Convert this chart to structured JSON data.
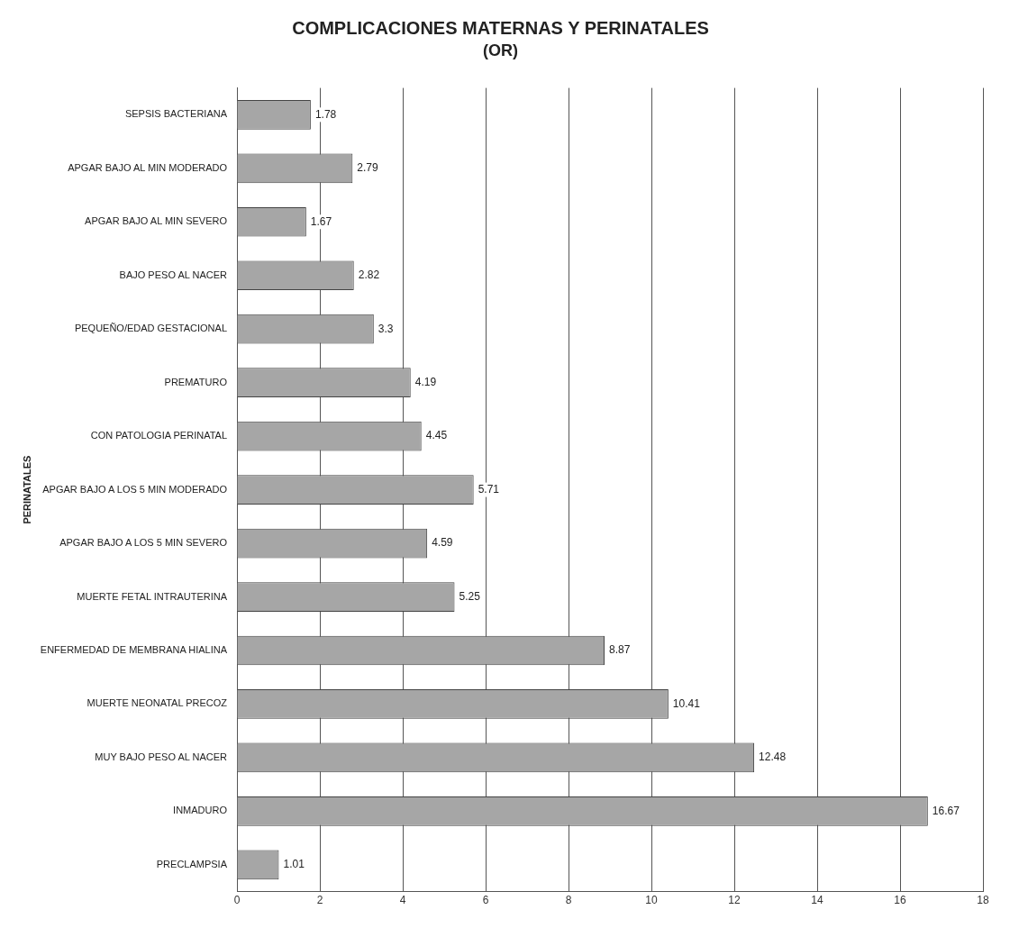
{
  "chart_data": {
    "type": "bar",
    "orientation": "horizontal",
    "title": "COMPLICACIONES MATERNAS Y PERINATALES",
    "subtitle": "(OR)",
    "ylabel": "PERINATALES",
    "categories": [
      "SEPSIS BACTERIANA",
      "APGAR BAJO AL MIN MODERADO",
      "APGAR BAJO AL MIN SEVERO",
      "BAJO PESO AL NACER",
      "PEQUEÑO/EDAD GESTACIONAL",
      "PREMATURO",
      "CON PATOLOGIA PERINATAL",
      "APGAR BAJO A LOS 5 MIN MODERADO",
      "APGAR BAJO A LOS 5 MIN SEVERO",
      "MUERTE FETAL INTRAUTERINA",
      "ENFERMEDAD DE MEMBRANA HIALINA",
      "MUERTE NEONATAL PRECOZ",
      "MUY BAJO PESO AL NACER",
      "INMADURO",
      "PRECLAMPSIA"
    ],
    "values": [
      1.78,
      2.79,
      1.67,
      2.82,
      3.3,
      4.19,
      4.45,
      5.71,
      4.59,
      5.25,
      8.87,
      10.41,
      12.48,
      16.67,
      1.01
    ],
    "color": "#a6a6a6",
    "data_labels": true,
    "xlim": [
      0,
      18
    ],
    "xticks": [
      0,
      2,
      4,
      6,
      8,
      10,
      12,
      14,
      16,
      18
    ],
    "grid": "x",
    "legend": false
  }
}
